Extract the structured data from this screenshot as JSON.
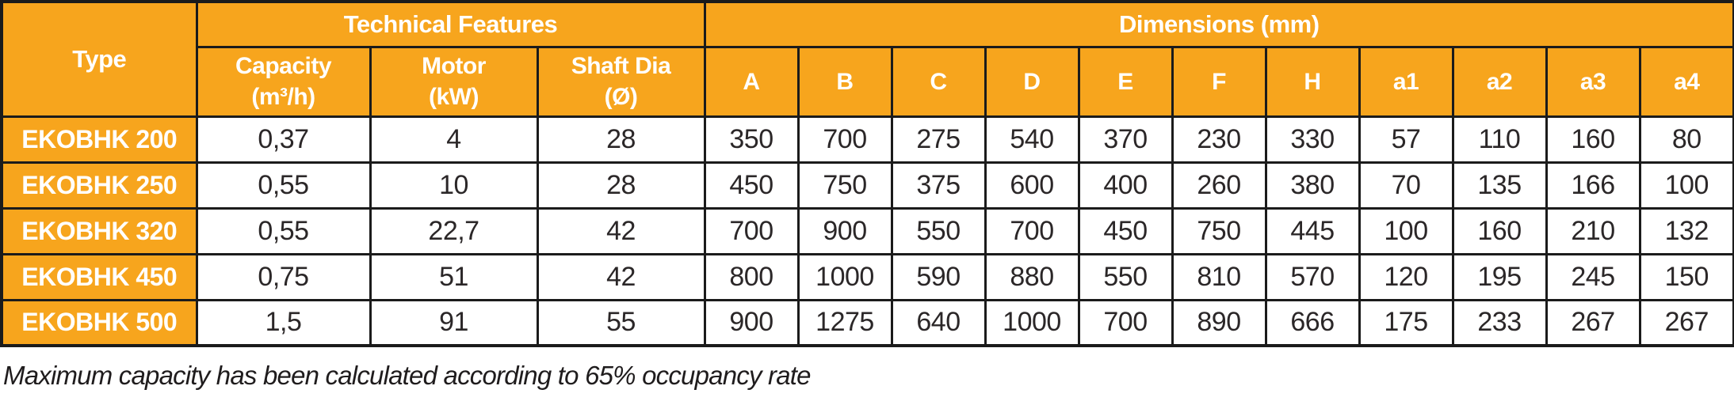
{
  "colors": {
    "header_bg": "#F7A51D",
    "header_text": "#FFFFFF",
    "border": "#1B1B1B",
    "cell_text": "#2B2728"
  },
  "table": {
    "header": {
      "type_label": "Type",
      "groups": [
        {
          "label": "Technical Features"
        },
        {
          "label": "Dimensions (mm)"
        }
      ],
      "tech_columns": [
        {
          "name": "Capacity",
          "unit": "(m³/h)"
        },
        {
          "name": "Motor",
          "unit": "(kW)"
        },
        {
          "name": "Shaft Dia",
          "unit": "(Ø)"
        }
      ],
      "dim_columns": [
        "A",
        "B",
        "C",
        "D",
        "E",
        "F",
        "H",
        "a1",
        "a2",
        "a3",
        "a4"
      ]
    },
    "rows": [
      {
        "type": "EKOBHK 200",
        "capacity": "0,37",
        "motor": "4",
        "shaft_dia": "28",
        "dims": [
          "350",
          "700",
          "275",
          "540",
          "370",
          "230",
          "330",
          "57",
          "110",
          "160",
          "80"
        ]
      },
      {
        "type": "EKOBHK 250",
        "capacity": "0,55",
        "motor": "10",
        "shaft_dia": "28",
        "dims": [
          "450",
          "750",
          "375",
          "600",
          "400",
          "260",
          "380",
          "70",
          "135",
          "166",
          "100"
        ]
      },
      {
        "type": "EKOBHK 320",
        "capacity": "0,55",
        "motor": "22,7",
        "shaft_dia": "42",
        "dims": [
          "700",
          "900",
          "550",
          "700",
          "450",
          "750",
          "445",
          "100",
          "160",
          "210",
          "132"
        ]
      },
      {
        "type": "EKOBHK 450",
        "capacity": "0,75",
        "motor": "51",
        "shaft_dia": "42",
        "dims": [
          "800",
          "1000",
          "590",
          "880",
          "550",
          "810",
          "570",
          "120",
          "195",
          "245",
          "150"
        ]
      },
      {
        "type": "EKOBHK 500",
        "capacity": "1,5",
        "motor": "91",
        "shaft_dia": "55",
        "dims": [
          "900",
          "1275",
          "640",
          "1000",
          "700",
          "890",
          "666",
          "175",
          "233",
          "267",
          "267"
        ]
      }
    ],
    "footnote": "Maximum capacity has been calculated according to 65% occupancy rate"
  }
}
